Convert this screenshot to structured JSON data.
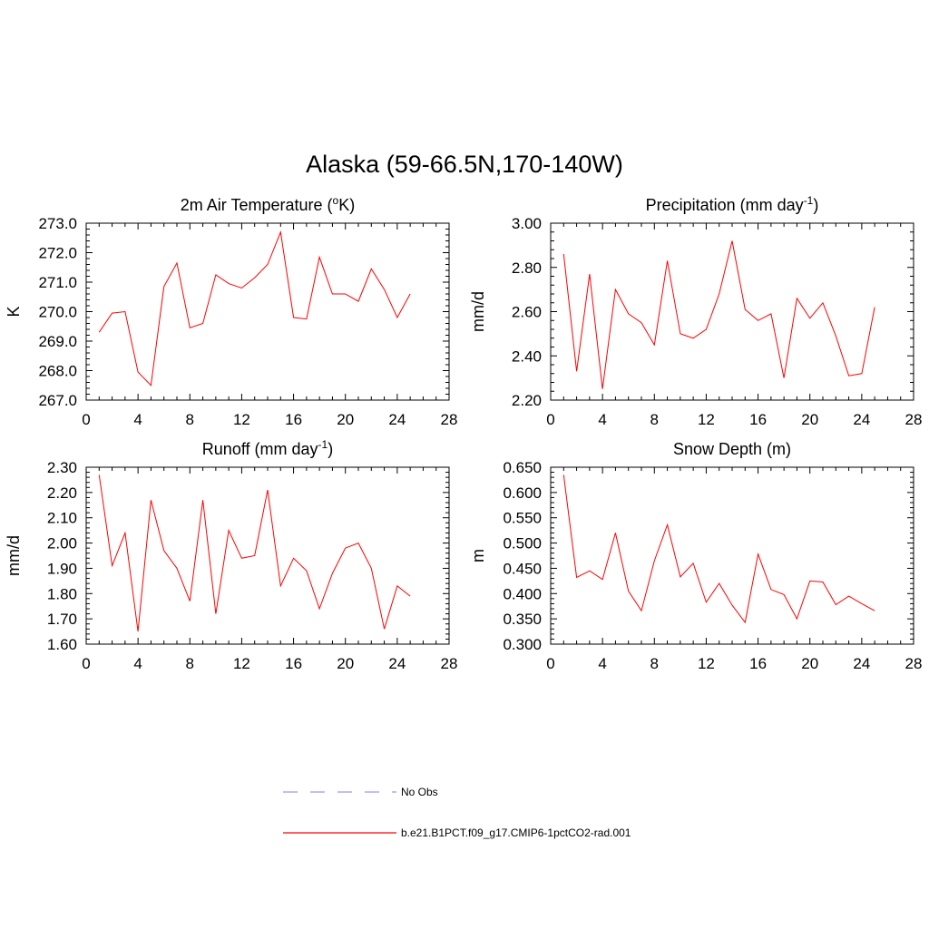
{
  "title": "Alaska (59-66.5N,170-140W)",
  "colors": {
    "model": "#ff0000",
    "obs": "#9999ee",
    "axis": "#000000"
  },
  "chart_data": [
    {
      "type": "line",
      "title": "2m Air Temperature (",
      "title_sup": "o",
      "title_tail": "K)",
      "ylabel": "K",
      "xlim": [
        0,
        28
      ],
      "ylim": [
        267.0,
        273.0
      ],
      "xticks": [
        "0",
        "4",
        "8",
        "12",
        "16",
        "20",
        "24",
        "28"
      ],
      "yticks": [
        "267.0",
        "268.0",
        "269.0",
        "270.0",
        "271.0",
        "272.0",
        "273.0"
      ],
      "x": [
        1,
        2,
        3,
        4,
        5,
        6,
        7,
        8,
        9,
        10,
        11,
        12,
        13,
        14,
        15,
        16,
        17,
        18,
        19,
        20,
        21,
        22,
        23,
        24,
        25
      ],
      "series": [
        {
          "name": "b.e21.B1PCT.f09_g17.CMIP6-1pctCO2-rad.001",
          "values": [
            269.3,
            269.95,
            270.0,
            267.95,
            267.5,
            270.85,
            271.65,
            269.45,
            269.6,
            271.25,
            270.95,
            270.8,
            271.15,
            271.6,
            272.7,
            269.8,
            269.75,
            271.85,
            270.6,
            270.6,
            270.35,
            271.45,
            270.75,
            269.8,
            270.6
          ]
        }
      ]
    },
    {
      "type": "line",
      "title": "Precipitation (mm day",
      "title_sup": "-1",
      "title_tail": ")",
      "ylabel": "mm/d",
      "xlim": [
        0,
        28
      ],
      "ylim": [
        2.2,
        3.0
      ],
      "xticks": [
        "0",
        "4",
        "8",
        "12",
        "16",
        "20",
        "24",
        "28"
      ],
      "yticks": [
        "2.20",
        "2.40",
        "2.60",
        "2.80",
        "3.00"
      ],
      "x": [
        1,
        2,
        3,
        4,
        5,
        6,
        7,
        8,
        9,
        10,
        11,
        12,
        13,
        14,
        15,
        16,
        17,
        18,
        19,
        20,
        21,
        22,
        23,
        24,
        25
      ],
      "series": [
        {
          "name": "b.e21.B1PCT.f09_g17.CMIP6-1pctCO2-rad.001",
          "values": [
            2.86,
            2.33,
            2.77,
            2.25,
            2.7,
            2.59,
            2.55,
            2.45,
            2.83,
            2.5,
            2.48,
            2.52,
            2.68,
            2.92,
            2.61,
            2.56,
            2.59,
            2.3,
            2.66,
            2.57,
            2.64,
            2.49,
            2.31,
            2.32,
            2.62
          ]
        }
      ]
    },
    {
      "type": "line",
      "title": "Runoff (mm day",
      "title_sup": "-1",
      "title_tail": ")",
      "ylabel": "mm/d",
      "xlim": [
        0,
        28
      ],
      "ylim": [
        1.6,
        2.3
      ],
      "xticks": [
        "0",
        "4",
        "8",
        "12",
        "16",
        "20",
        "24",
        "28"
      ],
      "yticks": [
        "1.60",
        "1.70",
        "1.80",
        "1.90",
        "2.00",
        "2.10",
        "2.20",
        "2.30"
      ],
      "x": [
        1,
        2,
        3,
        4,
        5,
        6,
        7,
        8,
        9,
        10,
        11,
        12,
        13,
        14,
        15,
        16,
        17,
        18,
        19,
        20,
        21,
        22,
        23,
        24,
        25
      ],
      "series": [
        {
          "name": "b.e21.B1PCT.f09_g17.CMIP6-1pctCO2-rad.001",
          "values": [
            2.27,
            1.91,
            2.04,
            1.65,
            2.17,
            1.97,
            1.9,
            1.77,
            2.17,
            1.72,
            2.05,
            1.94,
            1.95,
            2.21,
            1.83,
            1.94,
            1.89,
            1.74,
            1.88,
            1.98,
            2.0,
            1.9,
            1.66,
            1.83,
            1.79
          ]
        }
      ]
    },
    {
      "type": "line",
      "title": "Snow Depth (m)",
      "title_sup": "",
      "title_tail": "",
      "ylabel": "m",
      "xlim": [
        0,
        28
      ],
      "ylim": [
        0.3,
        0.65
      ],
      "xticks": [
        "0",
        "4",
        "8",
        "12",
        "16",
        "20",
        "24",
        "28"
      ],
      "yticks": [
        "0.300",
        "0.350",
        "0.400",
        "0.450",
        "0.500",
        "0.550",
        "0.600",
        "0.650"
      ],
      "x": [
        1,
        2,
        3,
        4,
        5,
        6,
        7,
        8,
        9,
        10,
        11,
        12,
        13,
        14,
        15,
        16,
        17,
        18,
        19,
        20,
        21,
        22,
        23,
        24,
        25
      ],
      "series": [
        {
          "name": "b.e21.B1PCT.f09_g17.CMIP6-1pctCO2-rad.001",
          "values": [
            0.635,
            0.432,
            0.445,
            0.428,
            0.52,
            0.405,
            0.366,
            0.465,
            0.536,
            0.433,
            0.46,
            0.383,
            0.42,
            0.377,
            0.343,
            0.478,
            0.408,
            0.398,
            0.35,
            0.425,
            0.423,
            0.378,
            0.395,
            0.38,
            0.366
          ]
        }
      ]
    }
  ],
  "legend": {
    "placement": "bottom-center",
    "items": [
      {
        "label": "No Obs",
        "style": "dashed",
        "color": "#9999ee"
      },
      {
        "label": "b.e21.B1PCT.f09_g17.CMIP6-1pctCO2-rad.001",
        "style": "solid",
        "color": "#ff0000"
      }
    ]
  }
}
